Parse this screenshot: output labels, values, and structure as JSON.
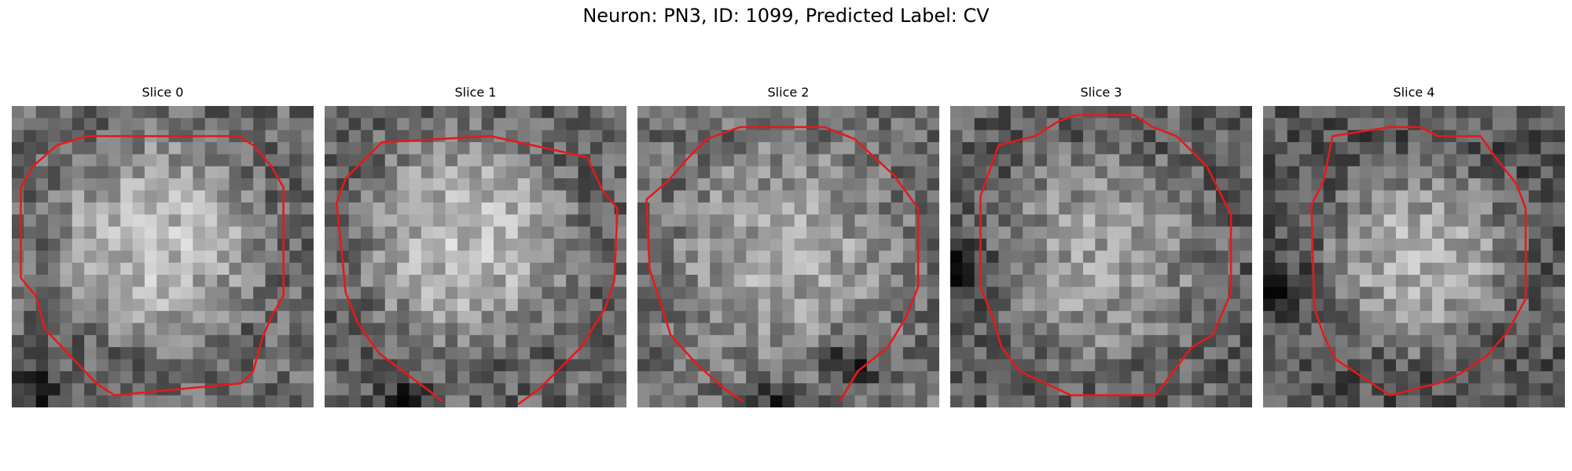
{
  "figure": {
    "title": "Neuron: PN3, ID: 1099, Predicted Label: CV"
  },
  "panels": [
    {
      "title": "Slice 0",
      "image": "grayscale-microscopy-patch",
      "contour_color": "#e41a1c"
    },
    {
      "title": "Slice 1",
      "image": "grayscale-microscopy-patch",
      "contour_color": "#e41a1c"
    },
    {
      "title": "Slice 2",
      "image": "grayscale-microscopy-patch",
      "contour_color": "#e41a1c"
    },
    {
      "title": "Slice 3",
      "image": "grayscale-microscopy-patch",
      "contour_color": "#e41a1c"
    },
    {
      "title": "Slice 4",
      "image": "grayscale-microscopy-patch",
      "contour_color": "#e41a1c"
    }
  ]
}
